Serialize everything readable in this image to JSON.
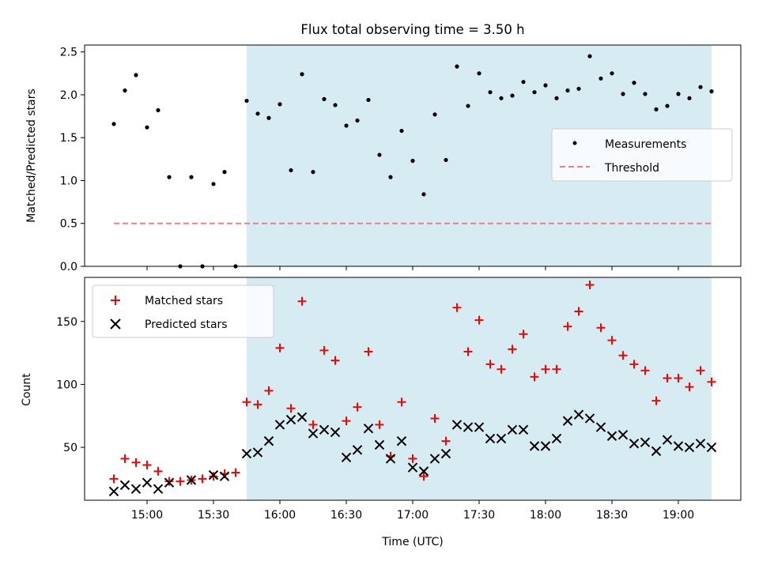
{
  "title": "Flux total observing time = 3.50 h",
  "colors": {
    "shade": "#add8e6",
    "measurement": "#000000",
    "threshold": "#f08080",
    "matched": "#ff0000",
    "predicted": "#000000"
  },
  "chart_data": [
    {
      "type": "scatter",
      "panel": "top",
      "ylabel": "Matched/Predicted stars",
      "xlabel": "",
      "ylim": [
        0,
        2.58
      ],
      "yticks": [
        "0.0",
        "0.5",
        "1.0",
        "1.5",
        "2.0",
        "2.5"
      ],
      "ytick_values": [
        0.0,
        0.5,
        1.0,
        1.5,
        2.0,
        2.5
      ],
      "x_unit": "minutes after 14:30 UTC",
      "shaded_span": [
        "15:45",
        "19:15"
      ],
      "legend_position": "center-right",
      "legend": [
        "Measurements",
        "Threshold"
      ],
      "threshold": {
        "value": 0.5,
        "x_start": "14:45",
        "x_end": "19:15"
      },
      "series": [
        {
          "name": "Measurements",
          "marker": "dot",
          "times": [
            "14:45",
            "14:50",
            "14:55",
            "15:00",
            "15:05",
            "15:10",
            "15:15",
            "15:20",
            "15:25",
            "15:30",
            "15:35",
            "15:40",
            "15:45",
            "15:50",
            "15:55",
            "16:00",
            "16:05",
            "16:10",
            "16:15",
            "16:20",
            "16:25",
            "16:30",
            "16:35",
            "16:40",
            "16:45",
            "16:50",
            "16:55",
            "17:00",
            "17:05",
            "17:10",
            "17:15",
            "17:20",
            "17:25",
            "17:30",
            "17:35",
            "17:40",
            "17:45",
            "17:50",
            "17:55",
            "18:00",
            "18:05",
            "18:10",
            "18:15",
            "18:20",
            "18:25",
            "18:30",
            "18:35",
            "18:40",
            "18:45",
            "18:50",
            "18:55",
            "19:00",
            "19:05",
            "19:10",
            "19:15"
          ],
          "values": [
            1.66,
            2.05,
            2.23,
            1.62,
            1.82,
            1.04,
            0.0,
            1.04,
            0.0,
            0.96,
            1.1,
            0.0,
            1.93,
            1.78,
            1.73,
            1.89,
            1.12,
            2.24,
            1.1,
            1.95,
            1.88,
            1.64,
            1.7,
            1.94,
            1.3,
            1.04,
            1.58,
            1.23,
            0.84,
            1.77,
            1.24,
            2.33,
            1.87,
            2.25,
            2.03,
            1.96,
            1.99,
            2.15,
            2.03,
            2.11,
            1.96,
            2.05,
            2.07,
            2.45,
            2.19,
            2.25,
            2.01,
            2.14,
            2.01,
            1.83,
            1.87,
            2.01,
            1.96,
            2.09,
            2.04
          ]
        }
      ]
    },
    {
      "type": "scatter",
      "panel": "bottom",
      "ylabel": "Count",
      "xlabel": "Time (UTC)",
      "ylim": [
        8,
        185
      ],
      "yticks": [
        "50",
        "100",
        "150"
      ],
      "ytick_values": [
        50,
        100,
        150
      ],
      "xticks": [
        "15:00",
        "15:30",
        "16:00",
        "16:30",
        "17:00",
        "17:30",
        "18:00",
        "18:30",
        "19:00"
      ],
      "shaded_span": [
        "15:45",
        "19:15"
      ],
      "legend_position": "upper-left",
      "legend": [
        "Matched stars",
        "Predicted stars"
      ],
      "series": [
        {
          "name": "Matched stars",
          "marker": "plus",
          "times": [
            "14:45",
            "14:50",
            "14:55",
            "15:00",
            "15:05",
            "15:10",
            "15:15",
            "15:20",
            "15:25",
            "15:30",
            "15:35",
            "15:40",
            "15:45",
            "15:50",
            "15:55",
            "16:00",
            "16:05",
            "16:10",
            "16:15",
            "16:20",
            "16:25",
            "16:30",
            "16:35",
            "16:40",
            "16:45",
            "16:50",
            "16:55",
            "17:00",
            "17:05",
            "17:10",
            "17:15",
            "17:20",
            "17:25",
            "17:30",
            "17:35",
            "17:40",
            "17:45",
            "17:50",
            "17:55",
            "18:00",
            "18:05",
            "18:10",
            "18:15",
            "18:20",
            "18:25",
            "18:30",
            "18:35",
            "18:40",
            "18:45",
            "18:50",
            "18:55",
            "19:00",
            "19:05",
            "19:10",
            "19:15"
          ],
          "values": [
            25,
            41,
            38,
            36,
            31,
            23,
            23,
            24,
            25,
            27,
            29,
            30,
            86,
            84,
            95,
            129,
            81,
            166,
            68,
            127,
            119,
            71,
            82,
            126,
            68,
            43,
            86,
            41,
            27,
            73,
            55,
            161,
            126,
            151,
            116,
            112,
            128,
            140,
            106,
            112,
            112,
            146,
            158,
            179,
            145,
            135,
            123,
            116,
            111,
            87,
            105,
            105,
            98,
            111,
            102
          ]
        },
        {
          "name": "Predicted stars",
          "marker": "x",
          "times": [
            "14:45",
            "14:50",
            "14:55",
            "15:00",
            "15:05",
            "15:10",
            "15:15",
            "15:20",
            "15:25",
            "15:30",
            "15:35",
            "15:40",
            "15:45",
            "15:50",
            "15:55",
            "16:00",
            "16:05",
            "16:10",
            "16:15",
            "16:20",
            "16:25",
            "16:30",
            "16:35",
            "16:40",
            "16:45",
            "16:50",
            "16:55",
            "17:00",
            "17:05",
            "17:10",
            "17:15",
            "17:20",
            "17:25",
            "17:30",
            "17:35",
            "17:40",
            "17:45",
            "17:50",
            "17:55",
            "18:00",
            "18:05",
            "18:10",
            "18:15",
            "18:20",
            "18:25",
            "18:30",
            "18:35",
            "18:40",
            "18:45",
            "18:50",
            "18:55",
            "19:00",
            "19:05",
            "19:10",
            "19:15"
          ],
          "values": [
            15,
            20,
            17,
            22,
            17,
            22,
            null,
            24,
            null,
            28,
            27,
            null,
            45,
            46,
            55,
            68,
            72,
            74,
            61,
            64,
            62,
            42,
            48,
            65,
            52,
            41,
            55,
            34,
            31,
            41,
            45,
            68,
            66,
            66,
            57,
            57,
            64,
            64,
            51,
            51,
            57,
            71,
            76,
            73,
            66,
            59,
            60,
            53,
            54,
            47,
            56,
            51,
            50,
            53,
            50
          ]
        }
      ]
    }
  ]
}
